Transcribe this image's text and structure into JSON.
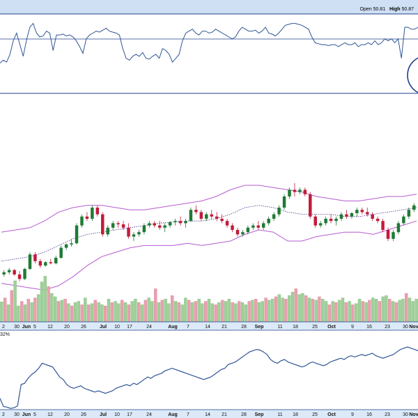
{
  "header": {
    "open_label": "Open",
    "open_value": "50.81",
    "high_label": "High",
    "high_value": "50.87"
  },
  "bottom_panel": {
    "partial_label": "32%"
  },
  "colors": {
    "background": "#ffffff",
    "panel_border": "#1f3f8a",
    "line": "#2f5595",
    "up": "#1f7a34",
    "down": "#c21b3a",
    "bollinger": "#b65bd0",
    "ma": "#4b2a8c",
    "vol_up": "#9fd09a",
    "vol_down": "#e9a0ad",
    "axis_band": "#dbe9f8",
    "top_band": "#cfe0f5",
    "circle": "#1f3f8a"
  },
  "x_axis": {
    "ticks": [
      {
        "label": "2",
        "bold": false
      },
      {
        "label": "30",
        "bold": false
      },
      {
        "label": "Jun",
        "bold": true
      },
      {
        "label": "5",
        "bold": false
      },
      {
        "label": "12",
        "bold": false
      },
      {
        "label": "20",
        "bold": false
      },
      {
        "label": "26",
        "bold": false
      },
      {
        "label": "Jul",
        "bold": true
      },
      {
        "label": "10",
        "bold": false
      },
      {
        "label": "17",
        "bold": false
      },
      {
        "label": "24",
        "bold": false
      },
      {
        "label": "Aug",
        "bold": true
      },
      {
        "label": "7",
        "bold": false
      },
      {
        "label": "14",
        "bold": false
      },
      {
        "label": "21",
        "bold": false
      },
      {
        "label": "28",
        "bold": false
      },
      {
        "label": "Sep",
        "bold": true
      },
      {
        "label": "11",
        "bold": false
      },
      {
        "label": "18",
        "bold": false
      },
      {
        "label": "25",
        "bold": false
      },
      {
        "label": "Oct",
        "bold": true
      },
      {
        "label": "9",
        "bold": false
      },
      {
        "label": "16",
        "bold": false
      },
      {
        "label": "23",
        "bold": false
      },
      {
        "label": "30",
        "bold": false
      },
      {
        "label": "Nov",
        "bold": true
      }
    ]
  },
  "chart_data": [
    {
      "type": "line",
      "panel": "indicator-top",
      "title": "",
      "reference_level": 0.5,
      "ylim": [
        0,
        1
      ],
      "values": [
        0.55,
        0.58,
        0.56,
        0.64,
        0.78,
        0.86,
        0.74,
        0.62,
        0.79,
        0.92,
        0.96,
        0.86,
        0.82,
        0.83,
        0.88,
        0.86,
        0.68,
        0.84,
        0.84,
        0.85,
        0.83,
        0.84,
        0.82,
        0.78,
        0.72,
        0.65,
        0.8,
        0.84,
        0.86,
        0.88,
        0.87,
        0.89,
        0.91,
        0.88,
        0.87,
        0.86,
        0.84,
        0.7,
        0.6,
        0.58,
        0.62,
        0.64,
        0.62,
        0.66,
        0.6,
        0.59,
        0.62,
        0.64,
        0.6,
        0.7,
        0.68,
        0.64,
        0.56,
        0.6,
        0.64,
        0.78,
        0.86,
        0.88,
        0.9,
        0.86,
        0.84,
        0.88,
        0.88,
        0.86,
        0.87,
        0.9,
        0.88,
        0.86,
        0.84,
        0.82,
        0.8,
        0.82,
        0.88,
        0.92,
        0.9,
        0.88,
        0.88,
        0.89,
        0.86,
        0.88,
        0.92,
        0.86,
        0.85,
        0.83,
        0.86,
        0.9,
        0.94,
        0.95,
        0.96,
        0.96,
        0.95,
        0.94,
        0.92,
        0.9,
        0.82,
        0.76,
        0.75,
        0.74,
        0.74,
        0.73,
        0.74,
        0.74,
        0.72,
        0.74,
        0.76,
        0.74,
        0.74,
        0.76,
        0.72,
        0.74,
        0.74,
        0.76,
        0.74,
        0.78,
        0.74,
        0.76,
        0.8,
        0.78,
        0.8,
        0.76,
        0.8,
        0.6,
        0.92,
        0.92,
        0.9,
        0.9,
        0.92
      ]
    },
    {
      "type": "candlestick",
      "panel": "price",
      "title": "",
      "x": [
        "2",
        "30",
        "Jun",
        "5",
        "12",
        "20",
        "26",
        "Jul",
        "10",
        "17",
        "24",
        "Aug",
        "7",
        "14",
        "21",
        "28",
        "Sep",
        "11",
        "18",
        "25",
        "Oct",
        "9",
        "16",
        "23",
        "30",
        "Nov"
      ],
      "ylim": [
        0,
        100
      ],
      "ohlc": [
        [
          10,
          14,
          8,
          12
        ],
        [
          12,
          16,
          10,
          14
        ],
        [
          14,
          15,
          9,
          10
        ],
        [
          10,
          13,
          4,
          6
        ],
        [
          6,
          16,
          5,
          15
        ],
        [
          15,
          30,
          14,
          28
        ],
        [
          28,
          30,
          20,
          22
        ],
        [
          22,
          24,
          16,
          18
        ],
        [
          18,
          22,
          17,
          21
        ],
        [
          21,
          24,
          19,
          20
        ],
        [
          20,
          27,
          19,
          25
        ],
        [
          25,
          36,
          24,
          34
        ],
        [
          34,
          38,
          32,
          37
        ],
        [
          37,
          42,
          35,
          38
        ],
        [
          38,
          56,
          37,
          54
        ],
        [
          54,
          64,
          52,
          62
        ],
        [
          62,
          66,
          58,
          60
        ],
        [
          60,
          72,
          58,
          70
        ],
        [
          70,
          72,
          62,
          64
        ],
        [
          64,
          66,
          44,
          46
        ],
        [
          46,
          54,
          44,
          52
        ],
        [
          52,
          58,
          50,
          56
        ],
        [
          56,
          58,
          52,
          55
        ],
        [
          55,
          58,
          50,
          52
        ],
        [
          52,
          56,
          42,
          44
        ],
        [
          44,
          48,
          40,
          46
        ],
        [
          46,
          50,
          44,
          48
        ],
        [
          48,
          56,
          46,
          54
        ],
        [
          54,
          58,
          52,
          56
        ],
        [
          56,
          58,
          52,
          54
        ],
        [
          54,
          58,
          50,
          52
        ],
        [
          52,
          56,
          48,
          54
        ],
        [
          54,
          58,
          52,
          57
        ],
        [
          57,
          60,
          54,
          58
        ],
        [
          58,
          62,
          54,
          56
        ],
        [
          56,
          60,
          52,
          58
        ],
        [
          58,
          70,
          57,
          68
        ],
        [
          68,
          72,
          64,
          66
        ],
        [
          66,
          68,
          58,
          60
        ],
        [
          60,
          66,
          58,
          64
        ],
        [
          64,
          68,
          60,
          62
        ],
        [
          62,
          66,
          58,
          60
        ],
        [
          60,
          64,
          56,
          58
        ],
        [
          58,
          60,
          52,
          54
        ],
        [
          54,
          56,
          48,
          50
        ],
        [
          50,
          52,
          44,
          46
        ],
        [
          46,
          50,
          44,
          48
        ],
        [
          48,
          54,
          46,
          52
        ],
        [
          52,
          56,
          50,
          54
        ],
        [
          54,
          58,
          50,
          52
        ],
        [
          52,
          58,
          50,
          56
        ],
        [
          56,
          62,
          54,
          60
        ],
        [
          60,
          66,
          58,
          64
        ],
        [
          64,
          72,
          62,
          70
        ],
        [
          70,
          82,
          68,
          80
        ],
        [
          80,
          88,
          78,
          86
        ],
        [
          86,
          92,
          80,
          84
        ],
        [
          84,
          88,
          82,
          86
        ],
        [
          86,
          88,
          80,
          82
        ],
        [
          82,
          84,
          60,
          62
        ],
        [
          62,
          64,
          52,
          54
        ],
        [
          54,
          58,
          52,
          56
        ],
        [
          56,
          62,
          54,
          60
        ],
        [
          60,
          64,
          56,
          58
        ],
        [
          58,
          62,
          54,
          60
        ],
        [
          60,
          66,
          58,
          64
        ],
        [
          64,
          68,
          60,
          62
        ],
        [
          62,
          66,
          60,
          65
        ],
        [
          65,
          70,
          62,
          68
        ],
        [
          68,
          70,
          64,
          66
        ],
        [
          66,
          70,
          62,
          64
        ],
        [
          64,
          66,
          58,
          60
        ],
        [
          60,
          62,
          56,
          58
        ],
        [
          58,
          60,
          48,
          50
        ],
        [
          50,
          52,
          40,
          42
        ],
        [
          42,
          50,
          40,
          48
        ],
        [
          48,
          58,
          46,
          56
        ],
        [
          56,
          64,
          54,
          62
        ],
        [
          62,
          70,
          60,
          68
        ],
        [
          68,
          74,
          66,
          72
        ]
      ],
      "bollinger": {
        "upper": [
          48,
          50,
          52,
          58,
          66,
          70,
          72,
          72,
          70,
          68,
          68,
          70,
          72,
          74,
          76,
          80,
          86,
          90,
          90,
          88,
          86,
          84,
          80,
          78,
          76,
          76,
          78,
          80,
          80,
          82
        ],
        "middle": [
          22,
          24,
          26,
          30,
          36,
          42,
          46,
          48,
          50,
          52,
          54,
          56,
          57,
          58,
          58,
          60,
          64,
          70,
          72,
          70,
          66,
          64,
          64,
          64,
          62,
          62,
          64,
          66,
          68,
          70
        ],
        "lower": [
          2,
          0,
          -2,
          -4,
          0,
          8,
          18,
          26,
          30,
          34,
          36,
          36,
          36,
          38,
          36,
          38,
          40,
          46,
          50,
          48,
          40,
          40,
          44,
          46,
          48,
          48,
          46,
          50,
          54,
          58
        ]
      }
    },
    {
      "type": "bar",
      "panel": "volume",
      "title": "",
      "ylim": [
        0,
        1
      ],
      "values": [
        0.35,
        0.42,
        0.3,
        0.55,
        0.72,
        0.28,
        0.36,
        0.3,
        0.4,
        0.34,
        0.42,
        0.48,
        0.7,
        0.8,
        0.62,
        0.5,
        0.44,
        0.36,
        0.38,
        0.4,
        0.32,
        0.28,
        0.34,
        0.36,
        0.3,
        0.42,
        0.3,
        0.32,
        0.38,
        0.34,
        0.3,
        0.28,
        0.4,
        0.34,
        0.36,
        0.32,
        0.38,
        0.34,
        0.3,
        0.36,
        0.4,
        0.34,
        0.3,
        0.38,
        0.42,
        0.36,
        0.58,
        0.34,
        0.38,
        0.4,
        0.32,
        0.46,
        0.36,
        0.34,
        0.3,
        0.42,
        0.38,
        0.34,
        0.36,
        0.4,
        0.32,
        0.36,
        0.4,
        0.32,
        0.3,
        0.34,
        0.38,
        0.36,
        0.4,
        0.34,
        0.32,
        0.36,
        0.34,
        0.3,
        0.36,
        0.38,
        0.4,
        0.34,
        0.36,
        0.42,
        0.38,
        0.4,
        0.44,
        0.48,
        0.42,
        0.4,
        0.46,
        0.52,
        0.58,
        0.48,
        0.5,
        0.46,
        0.42,
        0.4,
        0.38,
        0.44,
        0.4,
        0.36,
        0.3,
        0.36,
        0.34,
        0.38,
        0.42,
        0.34,
        0.36,
        0.3,
        0.32,
        0.4,
        0.36,
        0.34,
        0.38,
        0.42,
        0.4,
        0.36,
        0.44,
        0.46,
        0.4,
        0.36,
        0.34,
        0.38,
        0.4,
        0.5,
        0.42,
        0.36,
        0.4
      ],
      "up": [
        true,
        false,
        true,
        false,
        true,
        true,
        false,
        true,
        false,
        true,
        false,
        true,
        true,
        true,
        false,
        true,
        true,
        false,
        true,
        false,
        true,
        false,
        true,
        true,
        false,
        true,
        false,
        true,
        false,
        true,
        true,
        false,
        true,
        false,
        true,
        true,
        false,
        true,
        false,
        true,
        true,
        false,
        true,
        false,
        true,
        true,
        false,
        true,
        false,
        true,
        true,
        false,
        true,
        false,
        true,
        true,
        false,
        true,
        false,
        true,
        true,
        false,
        true,
        true,
        false,
        true,
        false,
        true,
        true,
        false,
        true,
        false,
        true,
        true,
        false,
        true,
        false,
        true,
        true,
        false,
        true,
        true,
        false,
        true,
        true,
        false,
        true,
        true,
        false,
        true,
        true,
        false,
        true,
        false,
        true,
        false,
        true,
        true,
        false,
        true,
        false,
        true,
        true,
        false,
        true,
        false,
        true,
        true,
        false,
        true,
        false,
        true,
        true,
        false,
        true,
        true,
        false,
        true,
        false,
        true,
        true,
        false,
        true,
        true,
        true
      ]
    },
    {
      "type": "line",
      "panel": "indicator-bottom",
      "title": "",
      "ylim": [
        0,
        1
      ],
      "values": [
        0.18,
        0.05,
        0.04,
        0.02,
        0.03,
        0.06,
        0.4,
        0.42,
        0.5,
        0.56,
        0.6,
        0.66,
        0.74,
        0.72,
        0.7,
        0.68,
        0.6,
        0.52,
        0.48,
        0.4,
        0.36,
        0.34,
        0.36,
        0.38,
        0.34,
        0.32,
        0.3,
        0.28,
        0.3,
        0.28,
        0.26,
        0.28,
        0.3,
        0.34,
        0.36,
        0.38,
        0.4,
        0.38,
        0.42,
        0.4,
        0.44,
        0.48,
        0.52,
        0.5,
        0.54,
        0.56,
        0.58,
        0.62,
        0.64,
        0.66,
        0.64,
        0.62,
        0.6,
        0.58,
        0.56,
        0.54,
        0.52,
        0.5,
        0.48,
        0.5,
        0.52,
        0.56,
        0.6,
        0.64,
        0.66,
        0.72,
        0.74,
        0.76,
        0.8,
        0.84,
        0.88,
        0.92,
        0.94,
        0.96,
        0.95,
        0.92,
        0.88,
        0.8,
        0.76,
        0.74,
        0.78,
        0.8,
        0.76,
        0.74,
        0.72,
        0.7,
        0.68,
        0.7,
        0.74,
        0.76,
        0.74,
        0.72,
        0.7,
        0.72,
        0.76,
        0.78,
        0.8,
        0.82,
        0.8,
        0.84,
        0.86,
        0.84,
        0.86,
        0.88,
        0.86,
        0.88,
        0.9,
        0.86,
        0.84,
        0.82,
        0.84,
        0.86,
        0.88,
        0.92,
        0.96,
        0.98,
        1.0,
        0.98,
        0.96,
        0.94
      ]
    }
  ]
}
